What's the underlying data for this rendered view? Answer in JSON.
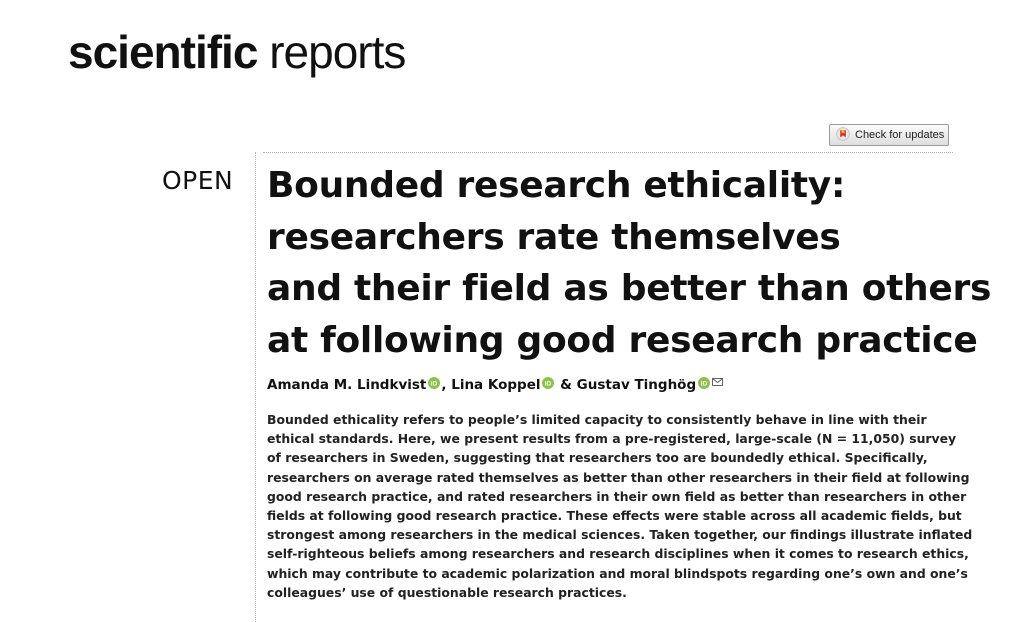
{
  "journal": {
    "name_bold": "scientific",
    "name_light": "reports"
  },
  "check_updates": {
    "label": "Check for updates"
  },
  "access": "OPEN",
  "title_lines": [
    "Bounded research ethicality:",
    "researchers rate themselves",
    "and their field as better than others",
    "at following good research practice"
  ],
  "authors": [
    {
      "name": "Amanda M. Lindkvist",
      "sep": ", "
    },
    {
      "name": "Lina Koppel",
      "sep": " & "
    },
    {
      "name": "Gustav Tinghög",
      "sep": ""
    }
  ],
  "icons": {
    "orcid": "orcid-icon",
    "mail": "mail-icon",
    "crossmark": "crossmark-icon"
  },
  "colors": {
    "orcid": "#8bc34a",
    "crossmark_red": "#d32f2f"
  },
  "abstract_lines": [
    "Bounded ethicality refers to people’s limited capacity to consistently behave in line with their",
    "ethical standards. Here, we present results from a pre-registered, large-scale (N = 11,050) survey",
    "of researchers in Sweden, suggesting that researchers too are boundedly ethical. Specifically,",
    "researchers on average rated themselves as better than other researchers in their field at following",
    "good research practice, and rated researchers in their own field as better than researchers in other",
    "fields at following good research practice. These effects were stable across all academic fields, but",
    "strongest among researchers in the medical sciences. Taken together, our findings illustrate inflated",
    "self-righteous beliefs among researchers and research disciplines when it comes to research ethics,",
    "which may contribute to academic polarization and moral blindspots regarding one’s own and one’s",
    "colleagues’ use of questionable research practices."
  ]
}
